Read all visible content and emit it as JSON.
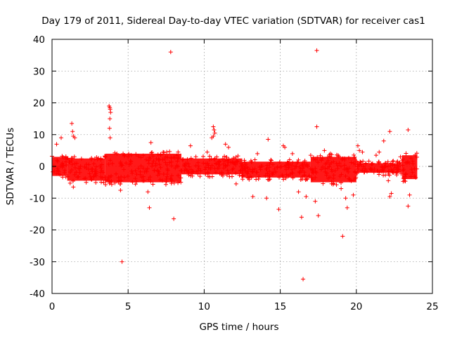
{
  "chart_data": {
    "type": "scatter",
    "title": "Day 179 of 2011, Sidereal Day-to-day VTEC variation (SDTVAR) for receiver cas1",
    "xlabel": "GPS time / hours",
    "ylabel": "SDTVAR / TECUs",
    "xlim": [
      0,
      25
    ],
    "ylim": [
      -40,
      40
    ],
    "xticks": [
      "0",
      "5",
      "10",
      "15",
      "20",
      "25"
    ],
    "yticks": [
      "40",
      "30",
      "20",
      "10",
      "0",
      "-10",
      "-20",
      "-30",
      "-40"
    ],
    "grid": true,
    "marker": "+",
    "color": "#ff0000",
    "series": [
      {
        "name": "cas1",
        "points": [
          [
            0.3,
            7.0
          ],
          [
            0.6,
            9.0
          ],
          [
            1.3,
            13.5
          ],
          [
            1.35,
            11.0
          ],
          [
            1.4,
            9.5
          ],
          [
            1.5,
            9.0
          ],
          [
            1.4,
            -6.5
          ],
          [
            3.75,
            19.0
          ],
          [
            3.8,
            18.5
          ],
          [
            3.82,
            18.0
          ],
          [
            3.85,
            17.0
          ],
          [
            3.8,
            15.0
          ],
          [
            3.78,
            12.0
          ],
          [
            3.82,
            9.0
          ],
          [
            4.5,
            -7.5
          ],
          [
            4.6,
            -30.0
          ],
          [
            5.0,
            3.0
          ],
          [
            6.3,
            -8.0
          ],
          [
            6.4,
            -13.0
          ],
          [
            6.5,
            7.5
          ],
          [
            7.8,
            36.0
          ],
          [
            8.0,
            -16.5
          ],
          [
            9.1,
            6.5
          ],
          [
            10.2,
            4.5
          ],
          [
            10.5,
            9.0
          ],
          [
            10.6,
            12.5
          ],
          [
            10.65,
            11.5
          ],
          [
            10.7,
            10.5
          ],
          [
            10.6,
            9.5
          ],
          [
            11.4,
            7.0
          ],
          [
            11.6,
            6.0
          ],
          [
            12.1,
            -5.5
          ],
          [
            12.5,
            -1.5
          ],
          [
            13.2,
            -9.5
          ],
          [
            13.5,
            4.0
          ],
          [
            14.2,
            8.5
          ],
          [
            14.1,
            -10.0
          ],
          [
            14.9,
            -13.5
          ],
          [
            15.2,
            6.5
          ],
          [
            15.3,
            6.0
          ],
          [
            15.8,
            4.0
          ],
          [
            16.2,
            -8.0
          ],
          [
            16.4,
            -16.0
          ],
          [
            16.5,
            -35.5
          ],
          [
            16.6,
            -3.0
          ],
          [
            16.7,
            -9.5
          ],
          [
            17.0,
            3.5
          ],
          [
            17.4,
            36.5
          ],
          [
            17.4,
            12.5
          ],
          [
            17.3,
            -11.0
          ],
          [
            17.5,
            -15.5
          ],
          [
            17.9,
            5.0
          ],
          [
            18.3,
            4.0
          ],
          [
            18.8,
            3.5
          ],
          [
            19.0,
            -7.0
          ],
          [
            19.1,
            -22.0
          ],
          [
            19.3,
            -10.0
          ],
          [
            19.4,
            -13.0
          ],
          [
            19.8,
            -9.0
          ],
          [
            20.1,
            6.5
          ],
          [
            20.2,
            5.0
          ],
          [
            20.4,
            4.5
          ],
          [
            21.3,
            3.5
          ],
          [
            21.5,
            4.5
          ],
          [
            21.8,
            8.0
          ],
          [
            22.1,
            -4.5
          ],
          [
            22.2,
            11.0
          ],
          [
            22.2,
            -9.5
          ],
          [
            22.3,
            -8.5
          ],
          [
            22.9,
            3.0
          ],
          [
            23.4,
            11.5
          ],
          [
            23.4,
            -12.5
          ],
          [
            23.5,
            -9.0
          ],
          [
            23.9,
            -3.5
          ]
        ],
        "bands": [
          {
            "x_range": [
              0.0,
              1.0
            ],
            "y_range": [
              -3.0,
              3.0
            ]
          },
          {
            "x_range": [
              1.0,
              3.5
            ],
            "y_range": [
              -4.5,
              2.5
            ]
          },
          {
            "x_range": [
              3.5,
              8.5
            ],
            "y_range": [
              -5.0,
              4.0
            ]
          },
          {
            "x_range": [
              8.5,
              12.5
            ],
            "y_range": [
              -2.5,
              2.5
            ]
          },
          {
            "x_range": [
              12.5,
              17.0
            ],
            "y_range": [
              -3.5,
              1.5
            ]
          },
          {
            "x_range": [
              17.0,
              20.0
            ],
            "y_range": [
              -5.0,
              3.0
            ]
          },
          {
            "x_range": [
              20.0,
              23.0
            ],
            "y_range": [
              -2.0,
              1.0
            ]
          },
          {
            "x_range": [
              23.0,
              24.0
            ],
            "y_range": [
              -4.0,
              3.5
            ]
          }
        ]
      }
    ]
  }
}
